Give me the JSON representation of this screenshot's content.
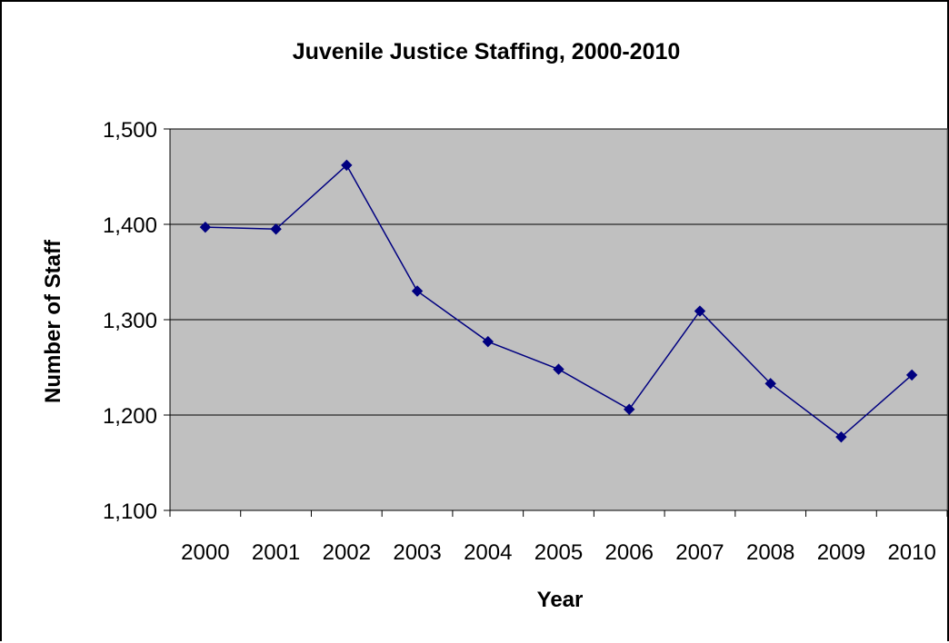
{
  "chart_data": {
    "type": "line",
    "title": "Juvenile Justice Staffing, 2000-2010",
    "xlabel": "Year",
    "ylabel": "Number of Staff",
    "categories": [
      "2000",
      "2001",
      "2002",
      "2003",
      "2004",
      "2005",
      "2006",
      "2007",
      "2008",
      "2009",
      "2010"
    ],
    "series": [
      {
        "values": [
          1397,
          1395,
          1462,
          1330,
          1277,
          1248,
          1206,
          1309,
          1233,
          1177,
          1242
        ]
      }
    ],
    "ylim": [
      1100,
      1500
    ],
    "y_ticks": [
      1100,
      1200,
      1300,
      1400,
      1500
    ],
    "y_tick_labels": [
      "1,100",
      "1,200",
      "1,300",
      "1,400",
      "1,500"
    ],
    "grid": true,
    "legend": "none",
    "colors": {
      "plot_background": "#c0c0c0",
      "series_line": "#000080",
      "gridline": "#000000"
    },
    "marker": "diamond"
  }
}
